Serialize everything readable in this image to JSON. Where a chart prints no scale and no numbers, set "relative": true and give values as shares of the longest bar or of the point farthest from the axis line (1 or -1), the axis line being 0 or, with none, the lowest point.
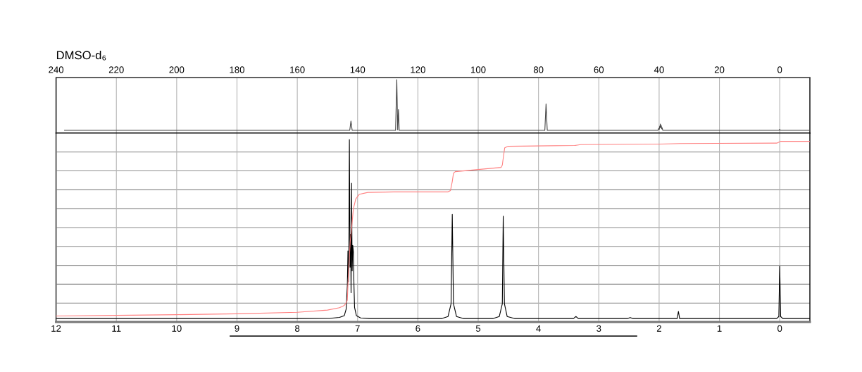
{
  "chart_data": [
    {
      "type": "line",
      "title": "DMSO-d₆",
      "relative": true,
      "xlim": [
        240,
        -10
      ],
      "xticks": [
        240,
        220,
        200,
        180,
        160,
        140,
        120,
        100,
        80,
        60,
        40,
        20,
        0
      ],
      "grid": "x",
      "tick_labels": "x",
      "series": [
        {
          "color": "#444444",
          "x": [
            237.2,
            142.6,
            142.2,
            141.8,
            127.4,
            127.0,
            126.7,
            126.45,
            126.2,
            77.9,
            77.5,
            77.1,
            40.4,
            40.1,
            39.95,
            39.8,
            39.7,
            39.6,
            39.45,
            39.3,
            39.15,
            39.0,
            38.8,
            0.2,
            0.0,
            -0.2,
            -10
          ],
          "values": [
            0.052,
            0.052,
            0.227,
            0.052,
            0.052,
            1.0,
            0.06,
            0.44,
            0.052,
            0.052,
            0.545,
            0.052,
            0.052,
            0.09,
            0.07,
            0.13,
            0.1,
            0.171,
            0.11,
            0.14,
            0.08,
            0.1,
            0.052,
            0.052,
            0.07,
            0.052,
            0.052
          ]
        }
      ]
    },
    {
      "type": "line",
      "relative": true,
      "xlim": [
        12,
        -0.5
      ],
      "xticks": [
        12,
        11,
        10,
        9,
        8,
        7,
        6,
        5,
        4,
        3,
        2,
        1,
        0
      ],
      "grid": true,
      "tick_labels": "x",
      "series": [
        {
          "color": "#000000",
          "x": [
            12,
            8.0,
            7.45,
            7.3,
            7.22,
            7.19,
            7.17,
            7.16,
            7.152,
            7.145,
            7.136,
            7.125,
            7.115,
            7.108,
            7.1,
            7.09,
            7.08,
            7.07,
            7.06,
            7.05,
            7.02,
            6.95,
            6.8,
            5.6,
            5.5,
            5.45,
            5.43,
            5.41,
            5.36,
            5.25,
            4.75,
            4.65,
            4.6,
            4.585,
            4.565,
            4.52,
            4.4,
            3.42,
            3.38,
            3.34,
            2.52,
            2.48,
            2.44,
            1.7,
            1.68,
            1.66,
            0.05,
            0.015,
            0.0,
            -0.015,
            -0.05,
            -0.5
          ],
          "values": [
            0.019,
            0.019,
            0.02,
            0.025,
            0.035,
            0.07,
            0.2,
            0.39,
            0.22,
            0.33,
            1.0,
            0.3,
            0.48,
            0.16,
            0.76,
            0.28,
            0.42,
            0.386,
            0.2,
            0.08,
            0.035,
            0.022,
            0.019,
            0.019,
            0.03,
            0.1,
            0.59,
            0.1,
            0.03,
            0.019,
            0.019,
            0.03,
            0.1,
            0.58,
            0.1,
            0.03,
            0.019,
            0.019,
            0.03,
            0.019,
            0.019,
            0.024,
            0.019,
            0.019,
            0.058,
            0.019,
            0.019,
            0.03,
            0.307,
            0.03,
            0.019,
            0.019
          ]
        },
        {
          "color": "#ff8080",
          "x": [
            12,
            11,
            10,
            9,
            8,
            7.5,
            7.3,
            7.22,
            7.19,
            7.17,
            7.15,
            7.12,
            7.1,
            7.07,
            7.03,
            6.97,
            6.83,
            6.4,
            5.5,
            5.46,
            5.43,
            5.41,
            5.38,
            4.62,
            4.6,
            4.58,
            4.56,
            4.5,
            3.4,
            3.3,
            2.0,
            1.65,
            0.05,
            -0.02,
            -0.5
          ],
          "values": [
            0.033,
            0.036,
            0.04,
            0.045,
            0.053,
            0.065,
            0.078,
            0.091,
            0.105,
            0.12,
            0.28,
            0.45,
            0.51,
            0.62,
            0.674,
            0.7,
            0.71,
            0.713,
            0.713,
            0.72,
            0.77,
            0.815,
            0.824,
            0.847,
            0.86,
            0.91,
            0.955,
            0.963,
            0.967,
            0.972,
            0.975,
            0.978,
            0.98,
            0.99,
            0.99
          ]
        }
      ]
    }
  ]
}
